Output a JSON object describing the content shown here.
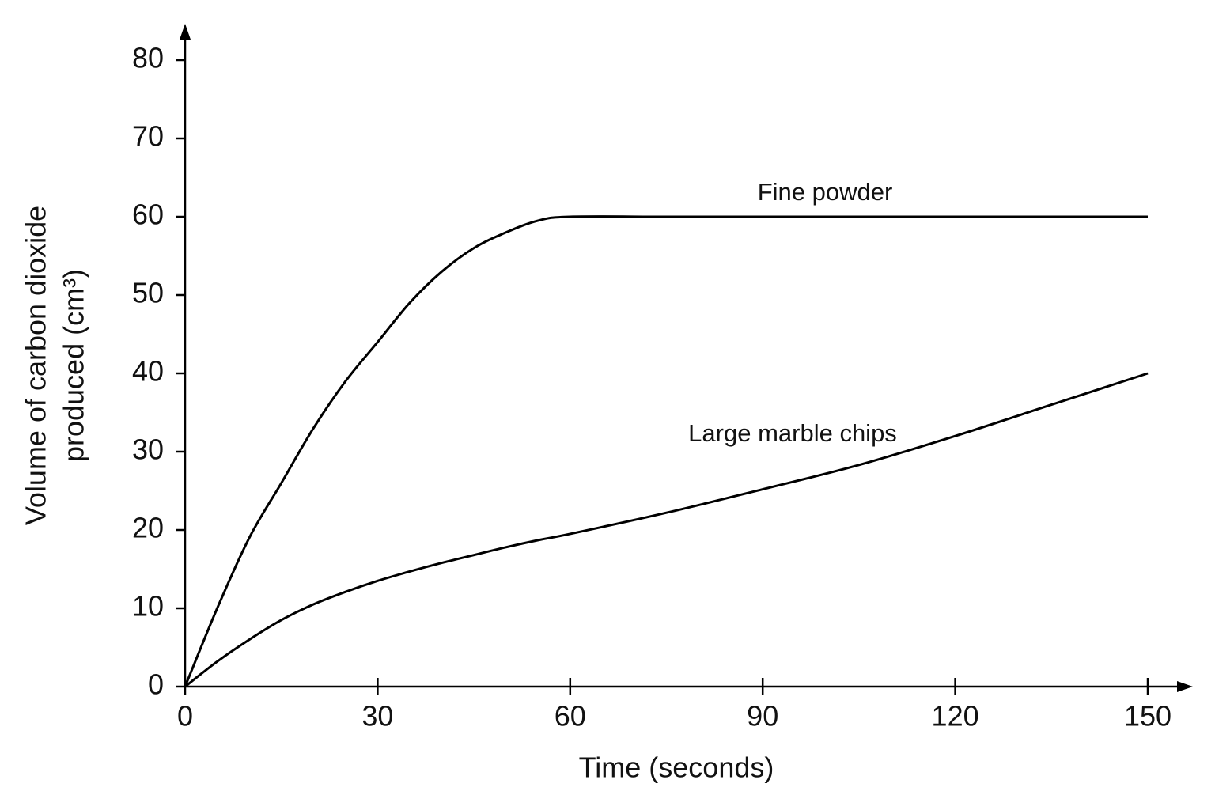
{
  "chart_data": {
    "type": "line",
    "x_label": "Time (seconds)",
    "y_label": [
      "Volume of carbon dioxide",
      "produced (cm³)"
    ],
    "x": [
      0,
      5,
      10,
      15,
      20,
      25,
      30,
      35,
      40,
      45,
      50,
      55,
      60,
      75,
      90,
      105,
      120,
      135,
      150
    ],
    "series": [
      {
        "name": "Fine powder",
        "color": "#000000",
        "values": [
          0,
          10,
          19,
          26,
          33,
          39,
          44,
          49,
          53,
          56,
          58,
          59.5,
          60,
          60,
          60,
          60,
          60,
          60,
          60
        ]
      },
      {
        "name": "Large marble chips",
        "color": "#000000",
        "values": [
          0,
          3.2,
          6,
          8.5,
          10.5,
          12.1,
          13.5,
          14.7,
          15.8,
          16.8,
          17.8,
          18.7,
          19.5,
          22.2,
          25.2,
          28.3,
          32,
          36,
          40
        ]
      }
    ],
    "xlim": [
      0,
      150
    ],
    "xticks": [
      0,
      30,
      60,
      90,
      120,
      150
    ],
    "ylim": [
      0,
      80
    ],
    "yticks": [
      0,
      10,
      20,
      30,
      40,
      50,
      60,
      70,
      80
    ],
    "grid": false
  }
}
